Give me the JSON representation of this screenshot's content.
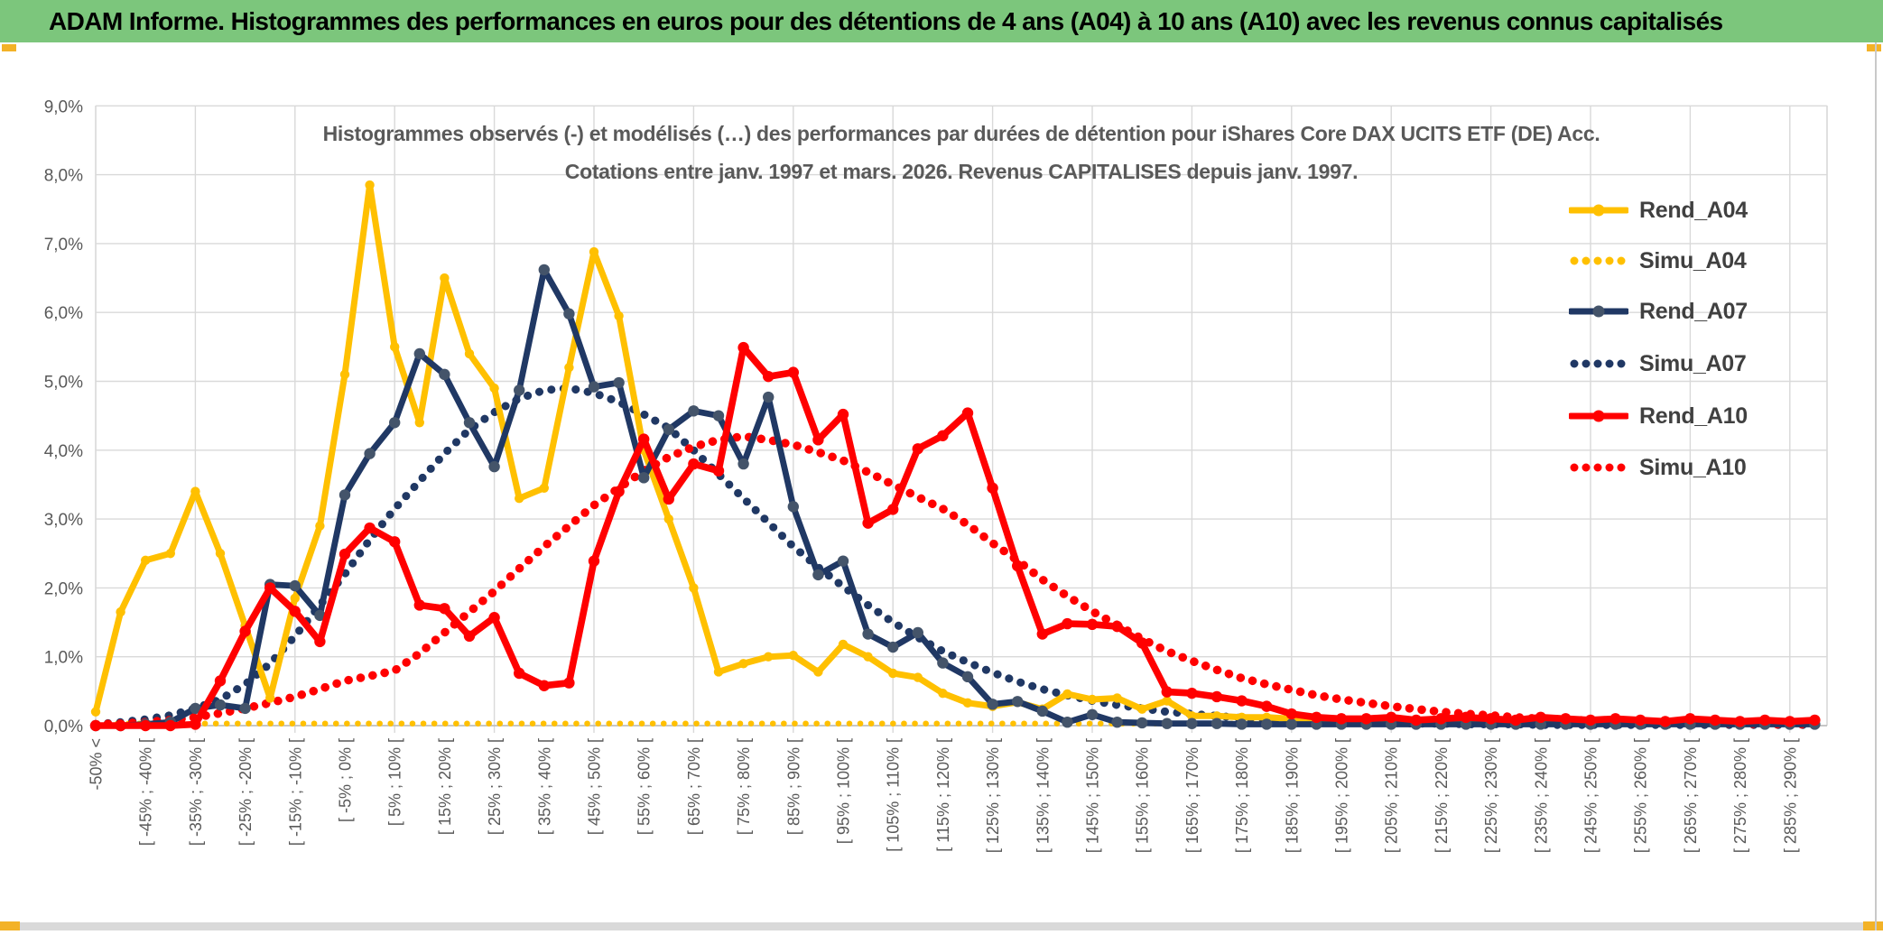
{
  "header": {
    "title": "ADAM Informe. Histogrammes des performances en euros pour des détentions de 4 ans (A04) à 10 ans (A10) avec les revenus connus capitalisés",
    "background_color": "#7CC67C"
  },
  "panel": {
    "handle_color": "#F3B227",
    "bottom_strip_color": "#D9D9D9"
  },
  "chart_data": {
    "type": "line",
    "title": "Histogrammes observés (-) et modélisés (…) des performances par durées de détention pour iShares Core DAX UCITS ETF (DE) Acc.",
    "subtitle": "Cotations entre janv. 1997 et mars. 2026. Revenus CAPITALISES depuis janv. 1997.",
    "grid": true,
    "legend_position": "right-inside",
    "ylim": [
      0,
      9
    ],
    "y_axis": {
      "labels": [
        "0,0%",
        "1,0%",
        "2,0%",
        "3,0%",
        "4,0%",
        "5,0%",
        "6,0%",
        "7,0%",
        "8,0%",
        "9,0%"
      ],
      "color": "#595959"
    },
    "x_axis": {
      "note": "70 bins of 5% width; every second bin labelled (labels read bottom-to-top)",
      "labels": [
        "-50% <",
        "[ -45% ; -40% [",
        "[ -35% ; -30% [",
        "[ -25% ; -20% [",
        "[ -15% ; -10% [",
        "[ -5% ; 0% [",
        "[ 5% ; 10% [",
        "[ 15% ; 20% [",
        "[ 25% ; 30% [",
        "[ 35% ; 40% [",
        "[ 45% ; 50% [",
        "[ 55% ; 60% [",
        "[ 65% ; 70% [",
        "[ 75% ; 80% [",
        "[ 85% ; 90% [",
        "[ 95% ; 100% [",
        "[ 105% ; 110% [",
        "[ 115% ; 120% [",
        "[ 125% ; 130% [",
        "[ 135% ; 140% [",
        "[ 145% ; 150% [",
        "[ 155% ; 160% [",
        "[ 165% ; 170% [",
        "[ 175% ; 180% [",
        "[ 185% ; 190% [",
        "[ 195% ; 200% [",
        "[ 205% ; 210% [",
        "[ 215% ; 220% [",
        "[ 225% ; 230% [",
        "[ 235% ; 240% [",
        "[ 245% ; 250% [",
        "[ 255% ; 260% [",
        "[ 265% ; 270% [",
        "[ 275% ; 280% [",
        "[ 285% ; 290% ["
      ],
      "color": "#595959"
    },
    "colors": {
      "gold": "#FFC000",
      "navy": "#203864",
      "navy_marker": "#44546A",
      "red": "#FF0000",
      "gridline": "#D9D9D9",
      "axis_line": "#BFBFBF",
      "text_gray": "#595959",
      "legend_text": "#404040"
    },
    "series": [
      {
        "name": "Rend_A04",
        "style": "solid",
        "color": "#FFC000",
        "marker_color": "#FFC000",
        "values": [
          0.2,
          1.65,
          2.4,
          2.5,
          3.4,
          2.5,
          1.45,
          0.4,
          1.85,
          2.9,
          5.1,
          7.85,
          5.5,
          4.4,
          6.5,
          5.4,
          4.9,
          3.3,
          3.45,
          5.2,
          6.88,
          5.95,
          4.0,
          3.0,
          2.0,
          0.78,
          0.9,
          1.0,
          1.02,
          0.78,
          1.18,
          1.0,
          0.76,
          0.7,
          0.47,
          0.33,
          0.28,
          0.34,
          0.24,
          0.46,
          0.38,
          0.4,
          0.24,
          0.36,
          0.14,
          0.14,
          0.12,
          0.12,
          0.1,
          0.05,
          0.03,
          0.03,
          0.03,
          0.03,
          0.03,
          0.03,
          0.03,
          0.03,
          0.03,
          0.03,
          0.03,
          0.03,
          0.03,
          0.03,
          0.03,
          0.03,
          0.03,
          0.03,
          0.03,
          0.03
        ]
      },
      {
        "name": "Simu_A04",
        "style": "dotted",
        "color": "#FFC000",
        "values": [
          0.03,
          0.03,
          0.03,
          0.03,
          0.03,
          0.03,
          0.03,
          0.03,
          0.03,
          0.03,
          0.03,
          0.03,
          0.03,
          0.03,
          0.03,
          0.03,
          0.03,
          0.03,
          0.03,
          0.03,
          0.03,
          0.03,
          0.03,
          0.03,
          0.03,
          0.03,
          0.03,
          0.03,
          0.03,
          0.03,
          0.03,
          0.03,
          0.03,
          0.03,
          0.03,
          0.03,
          0.03,
          0.03,
          0.03,
          0.03,
          0.03,
          0.03,
          0.03,
          0.03,
          0.03,
          0.03,
          0.03,
          0.03,
          0.03,
          0.03,
          0.03,
          0.03,
          0.03,
          0.03,
          0.03,
          0.03,
          0.03,
          0.03,
          0.03,
          0.03,
          0.03,
          0.03,
          0.03,
          0.03,
          0.03,
          0.03,
          0.03,
          0.03,
          0.03,
          0.03
        ]
      },
      {
        "name": "Rend_A07",
        "style": "solid",
        "color": "#203864",
        "marker_color": "#44546A",
        "values": [
          0,
          0,
          0.02,
          0.05,
          0.25,
          0.3,
          0.25,
          2.05,
          2.03,
          1.6,
          3.35,
          3.95,
          4.4,
          5.4,
          5.1,
          4.4,
          3.76,
          4.87,
          6.62,
          5.98,
          4.92,
          4.98,
          3.6,
          4.3,
          4.57,
          4.5,
          3.8,
          4.77,
          3.18,
          2.19,
          2.39,
          1.33,
          1.14,
          1.35,
          0.91,
          0.71,
          0.31,
          0.35,
          0.21,
          0.05,
          0.16,
          0.05,
          0.04,
          0.03,
          0.03,
          0.03,
          0.02,
          0.02,
          0.02,
          0.02,
          0.02,
          0.02,
          0.02,
          0.02,
          0.02,
          0.02,
          0.02,
          0.02,
          0.02,
          0.02,
          0.02,
          0.02,
          0.02,
          0.02,
          0.02,
          0.02,
          0.02,
          0.02,
          0.02,
          0.02
        ]
      },
      {
        "name": "Simu_A07",
        "style": "dotted",
        "color": "#203864",
        "values": [
          0.02,
          0.05,
          0.09,
          0.15,
          0.25,
          0.38,
          0.6,
          0.9,
          1.3,
          1.75,
          2.2,
          2.7,
          3.15,
          3.55,
          3.95,
          4.3,
          4.55,
          4.75,
          4.87,
          4.9,
          4.83,
          4.7,
          4.52,
          4.32,
          4.0,
          3.65,
          3.3,
          2.95,
          2.6,
          2.3,
          2.02,
          1.75,
          1.5,
          1.28,
          1.08,
          0.92,
          0.77,
          0.64,
          0.53,
          0.44,
          0.36,
          0.3,
          0.25,
          0.2,
          0.17,
          0.14,
          0.11,
          0.09,
          0.07,
          0.06,
          0.05,
          0.04,
          0.04,
          0.03,
          0.03,
          0.02,
          0.02,
          0.02,
          0.01,
          0.01,
          0.01,
          0.01,
          0.01,
          0.01,
          0.01,
          0.01,
          0.01,
          0.01,
          0.01,
          0.01
        ]
      },
      {
        "name": "Rend_A10",
        "style": "solid",
        "color": "#FF0000",
        "marker_color": "#FF0000",
        "values": [
          0,
          0,
          0,
          0,
          0.02,
          0.65,
          1.37,
          2.0,
          1.66,
          1.22,
          2.49,
          2.87,
          2.67,
          1.75,
          1.7,
          1.3,
          1.57,
          0.76,
          0.58,
          0.62,
          2.39,
          3.4,
          4.16,
          3.29,
          3.8,
          3.7,
          5.49,
          5.07,
          5.13,
          4.15,
          4.52,
          2.94,
          3.14,
          4.02,
          4.21,
          4.54,
          3.45,
          2.32,
          1.33,
          1.48,
          1.47,
          1.44,
          1.2,
          0.49,
          0.47,
          0.42,
          0.36,
          0.28,
          0.17,
          0.12,
          0.1,
          0.1,
          0.12,
          0.08,
          0.1,
          0.12,
          0.1,
          0.08,
          0.12,
          0.1,
          0.08,
          0.1,
          0.08,
          0.06,
          0.1,
          0.08,
          0.06,
          0.08,
          0.06,
          0.08
        ]
      },
      {
        "name": "Simu_A10",
        "style": "dotted",
        "color": "#FF0000",
        "values": [
          0.02,
          0.03,
          0.05,
          0.08,
          0.12,
          0.18,
          0.25,
          0.33,
          0.42,
          0.53,
          0.65,
          0.72,
          0.8,
          1.05,
          1.35,
          1.65,
          1.95,
          2.28,
          2.6,
          2.9,
          3.2,
          3.45,
          3.7,
          3.9,
          4.05,
          4.15,
          4.2,
          4.15,
          4.08,
          3.97,
          3.85,
          3.68,
          3.5,
          3.32,
          3.15,
          2.92,
          2.65,
          2.4,
          2.12,
          1.88,
          1.66,
          1.46,
          1.26,
          1.08,
          0.94,
          0.81,
          0.69,
          0.6,
          0.52,
          0.44,
          0.38,
          0.33,
          0.28,
          0.24,
          0.2,
          0.17,
          0.15,
          0.12,
          0.1,
          0.09,
          0.07,
          0.06,
          0.05,
          0.05,
          0.04,
          0.03,
          0.03,
          0.02,
          0.02,
          0.02
        ]
      }
    ]
  }
}
